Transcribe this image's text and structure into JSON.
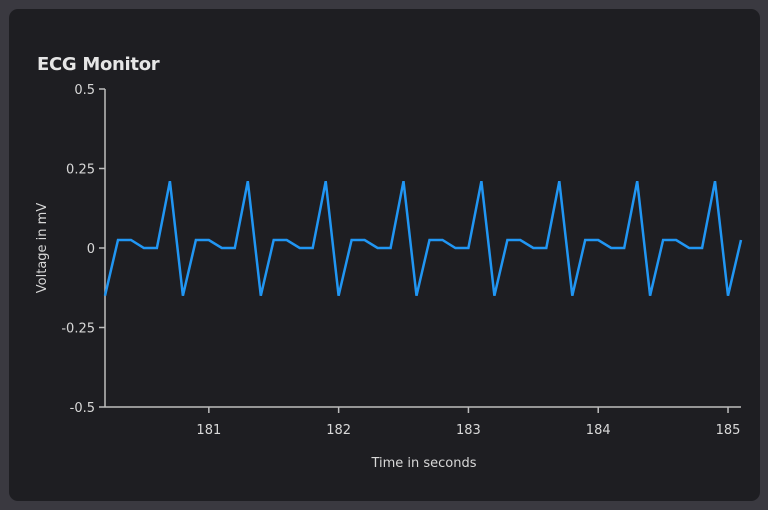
{
  "chart_data": {
    "type": "line",
    "title": "ECG Monitor",
    "xlabel": "Time in seconds",
    "ylabel": "Voltage in mV",
    "xlim": [
      180.2,
      185.1
    ],
    "ylim": [
      -0.5,
      0.5
    ],
    "xticks": [
      "181",
      "182",
      "183",
      "184",
      "185"
    ],
    "xtick_values": [
      181,
      182,
      183,
      184,
      185
    ],
    "yticks": [
      "0.5",
      "0.25",
      "0",
      "-0.25",
      "-0.5"
    ],
    "ytick_values": [
      0.5,
      0.25,
      0,
      -0.25,
      -0.5
    ],
    "grid": false,
    "line_color": "#2196f3",
    "series": [
      {
        "x": [
          180.2,
          180.3,
          180.4,
          180.5,
          180.6,
          180.7,
          180.8,
          180.9,
          181.0,
          181.1,
          181.2,
          181.3,
          181.4,
          181.5,
          181.6,
          181.7,
          181.8,
          181.9,
          182.0,
          182.1,
          182.2,
          182.3,
          182.4,
          182.5,
          182.6,
          182.7,
          182.8,
          182.9,
          183.0,
          183.1,
          183.2,
          183.3,
          183.4,
          183.5,
          183.6,
          183.7,
          183.8,
          183.9,
          184.0,
          184.1,
          184.2,
          184.3,
          184.4,
          184.5,
          184.6,
          184.7,
          184.8,
          184.9,
          185.0,
          185.1
        ],
        "y": [
          -0.15,
          0.025,
          0.025,
          0,
          0,
          0.21,
          -0.15,
          0.025,
          0.025,
          0,
          0,
          0.21,
          -0.15,
          0.025,
          0.025,
          0,
          0,
          0.21,
          -0.15,
          0.025,
          0.025,
          0,
          0,
          0.21,
          -0.15,
          0.025,
          0.025,
          0,
          0,
          0.21,
          -0.15,
          0.025,
          0.025,
          0,
          0,
          0.21,
          -0.15,
          0.025,
          0.025,
          0,
          0,
          0.21,
          -0.15,
          0.025,
          0.025,
          0,
          0,
          0.21,
          -0.15,
          0.025
        ]
      }
    ]
  }
}
